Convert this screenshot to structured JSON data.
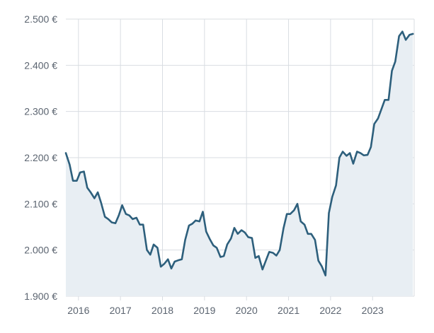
{
  "chart_data": {
    "type": "area",
    "title": "",
    "xlabel": "",
    "ylabel": "",
    "grid": true,
    "legend": "none",
    "colors": {
      "line": "#2d5f7c",
      "fill": "#e8eef3",
      "grid": "#d9dde2",
      "tick_text": "#5b6470"
    },
    "ylim": [
      1900,
      2500
    ],
    "xlim": [
      2015.7,
      2023.99
    ],
    "y_ticks": [
      {
        "value": 1900,
        "label": "1.900 €"
      },
      {
        "value": 2000,
        "label": "2.000 €"
      },
      {
        "value": 2100,
        "label": "2.100 €"
      },
      {
        "value": 2200,
        "label": "2.200 €"
      },
      {
        "value": 2300,
        "label": "2.300 €"
      },
      {
        "value": 2400,
        "label": "2.400 €"
      },
      {
        "value": 2500,
        "label": "2.500 €"
      }
    ],
    "x_ticks": [
      {
        "value": 2016,
        "label": "2016"
      },
      {
        "value": 2017,
        "label": "2017"
      },
      {
        "value": 2018,
        "label": "2018"
      },
      {
        "value": 2019,
        "label": "2019"
      },
      {
        "value": 2020,
        "label": "2020"
      },
      {
        "value": 2021,
        "label": "2021"
      },
      {
        "value": 2022,
        "label": "2022"
      },
      {
        "value": 2023,
        "label": "2023"
      }
    ],
    "series": [
      {
        "x": [
          2015.7,
          2015.79,
          2015.87,
          2015.96,
          2016.04,
          2016.13,
          2016.21,
          2016.29,
          2016.38,
          2016.46,
          2016.54,
          2016.63,
          2016.71,
          2016.79,
          2016.88,
          2016.96,
          2017.04,
          2017.13,
          2017.21,
          2017.29,
          2017.38,
          2017.46,
          2017.54,
          2017.63,
          2017.71,
          2017.79,
          2017.88,
          2017.96,
          2018.04,
          2018.13,
          2018.21,
          2018.29,
          2018.38,
          2018.46,
          2018.54,
          2018.63,
          2018.71,
          2018.79,
          2018.88,
          2018.96,
          2019.04,
          2019.13,
          2019.21,
          2019.29,
          2019.38,
          2019.46,
          2019.54,
          2019.63,
          2019.71,
          2019.79,
          2019.88,
          2019.96,
          2020.04,
          2020.13,
          2020.21,
          2020.29,
          2020.38,
          2020.46,
          2020.54,
          2020.63,
          2020.71,
          2020.79,
          2020.88,
          2020.96,
          2021.04,
          2021.13,
          2021.21,
          2021.29,
          2021.38,
          2021.46,
          2021.54,
          2021.63,
          2021.71,
          2021.79,
          2021.88,
          2021.96,
          2022.04,
          2022.13,
          2022.21,
          2022.29,
          2022.38,
          2022.46,
          2022.54,
          2022.63,
          2022.71,
          2022.79,
          2022.88,
          2022.96,
          2023.04,
          2023.13,
          2023.21,
          2023.29,
          2023.38,
          2023.46,
          2023.54,
          2023.63,
          2023.71,
          2023.79,
          2023.88,
          2023.96
        ],
        "values": [
          2210,
          2185,
          2150,
          2150,
          2168,
          2170,
          2135,
          2125,
          2112,
          2125,
          2102,
          2072,
          2067,
          2060,
          2058,
          2075,
          2097,
          2078,
          2075,
          2067,
          2070,
          2055,
          2055,
          2000,
          1990,
          2012,
          2005,
          1964,
          1970,
          1980,
          1960,
          1975,
          1978,
          1980,
          2022,
          2053,
          2057,
          2064,
          2062,
          2083,
          2040,
          2023,
          2010,
          2005,
          1985,
          1987,
          2012,
          2025,
          2048,
          2035,
          2043,
          2038,
          2028,
          2026,
          1983,
          1987,
          1958,
          1977,
          1996,
          1994,
          1988,
          2000,
          2047,
          2078,
          2078,
          2086,
          2100,
          2062,
          2055,
          2035,
          2035,
          2022,
          1977,
          1965,
          1945,
          2080,
          2115,
          2140,
          2200,
          2213,
          2204,
          2210,
          2187,
          2213,
          2210,
          2205,
          2206,
          2223,
          2273,
          2285,
          2305,
          2325,
          2325,
          2388,
          2408,
          2463,
          2473,
          2455,
          2466,
          2468
        ]
      }
    ]
  }
}
